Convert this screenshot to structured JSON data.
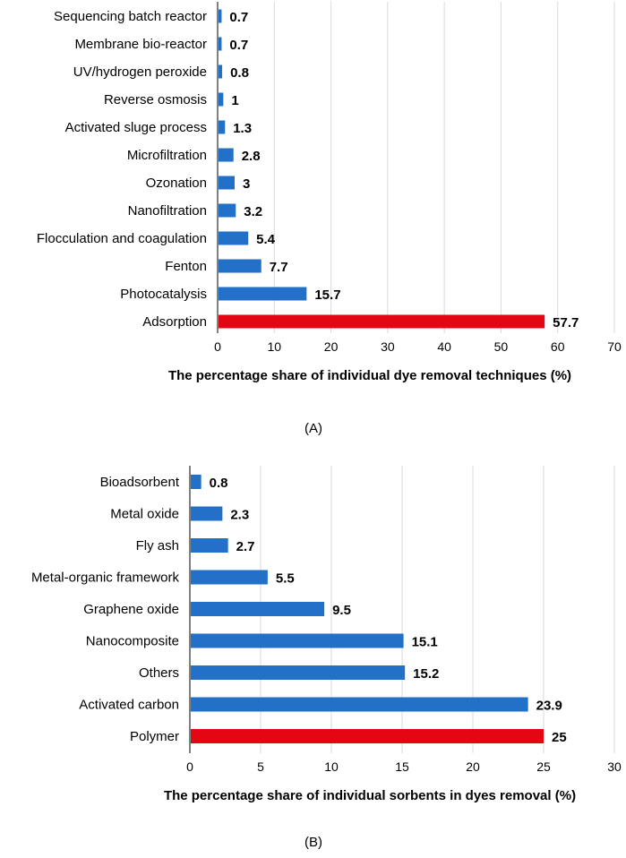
{
  "chart_data": [
    {
      "type": "bar",
      "orientation": "horizontal",
      "panel_label": "(A)",
      "title": "",
      "xlabel": "The percentage share of individual dye removal techniques (%)",
      "ylabel": "",
      "xlim": [
        0,
        70
      ],
      "xticks": [
        0,
        10,
        20,
        30,
        40,
        50,
        60,
        70
      ],
      "grid": true,
      "categories": [
        "Sequencing batch reactor",
        "Membrane bio-reactor",
        "UV/hydrogen peroxide",
        "Reverse osmosis",
        "Activated sluge process",
        "Microfiltration",
        "Ozonation",
        "Nanofiltration",
        "Flocculation and coagulation",
        "Fenton",
        "Photocatalysis",
        "Adsorption"
      ],
      "values": [
        0.7,
        0.7,
        0.8,
        1,
        1.3,
        2.8,
        3,
        3.2,
        5.4,
        7.7,
        15.7,
        57.7
      ],
      "value_labels": [
        "0.7",
        "0.7",
        "0.8",
        "1",
        "1.3",
        "2.8",
        "3",
        "3.2",
        "5.4",
        "7.7",
        "15.7",
        "57.7"
      ],
      "colors": [
        "#2270c8",
        "#2270c8",
        "#2270c8",
        "#2270c8",
        "#2270c8",
        "#2270c8",
        "#2270c8",
        "#2270c8",
        "#2270c8",
        "#2270c8",
        "#2270c8",
        "#e30613"
      ]
    },
    {
      "type": "bar",
      "orientation": "horizontal",
      "panel_label": "(B)",
      "title": "",
      "xlabel": "The percentage share of individual sorbents in dyes removal (%)",
      "ylabel": "",
      "xlim": [
        0,
        30
      ],
      "xticks": [
        0,
        5,
        10,
        15,
        20,
        25,
        30
      ],
      "grid": true,
      "categories": [
        "Bioadsorbent",
        "Metal oxide",
        "Fly ash",
        "Metal-organic framework",
        "Graphene oxide",
        "Nanocomposite",
        "Others",
        "Activated carbon",
        "Polymer"
      ],
      "values": [
        0.8,
        2.3,
        2.7,
        5.5,
        9.5,
        15.1,
        15.2,
        23.9,
        25
      ],
      "value_labels": [
        "0.8",
        "2.3",
        "2.7",
        "5.5",
        "9.5",
        "15.1",
        "15.2",
        "23.9",
        "25"
      ],
      "colors": [
        "#2270c8",
        "#2270c8",
        "#2270c8",
        "#2270c8",
        "#2270c8",
        "#2270c8",
        "#2270c8",
        "#2270c8",
        "#e30613"
      ]
    }
  ]
}
